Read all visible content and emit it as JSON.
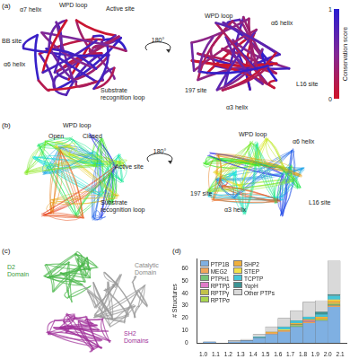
{
  "panels": {
    "a": {
      "label": "(a)",
      "left_labels": [
        "α7 helix",
        "WPD loop",
        "Active site",
        "BB site",
        "α6 helix",
        "Substrate\nrecognition loop"
      ],
      "right_labels": [
        "WPD loop",
        "α6 helix",
        "L16 site",
        "197 site",
        "α3 helix"
      ],
      "rotation": "180°",
      "colorbar": {
        "title": "Conservation score",
        "range": [
          0,
          1
        ],
        "ticks": [
          0,
          1
        ]
      }
    },
    "b": {
      "label": "(b)",
      "left_labels": [
        "WPD loop",
        "Open",
        "Closed",
        "Active site",
        "Substrate\nrecognition loop"
      ],
      "right_labels": [
        "WPD loop",
        "α6 helix",
        "L16 site",
        "197 site",
        "α3 helix"
      ],
      "rotation": "180°"
    },
    "c": {
      "label": "(c)",
      "labels": [
        "D2\nDomain",
        "Catalytic\nDomain",
        "SH2\nDomains"
      ]
    }
  },
  "chart_data": {
    "type": "bar",
    "panel_label": "(d)",
    "y_label": "# Structures",
    "bins": [
      1.0,
      1.1,
      1.2,
      1.3,
      1.4,
      1.5,
      1.6,
      1.7,
      1.8,
      1.9,
      2.0,
      2.1
    ],
    "stacked": true,
    "grid": false,
    "legend": "upper left",
    "xlim": [
      1.0,
      2.1
    ],
    "xticks": [
      {
        "value": 1.0,
        "label": "1.0"
      },
      1.1,
      1.2,
      1.3,
      1.4,
      1.5,
      1.6,
      1.7,
      1.8,
      1.9,
      {
        "value": 2.0,
        "label": "2.0"
      },
      2.1
    ],
    "ylim": [
      0,
      68
    ],
    "yticks": [
      0,
      10,
      20,
      30,
      40,
      50,
      60
    ],
    "series": [
      {
        "name": "PTP1B",
        "color": "#7fb0e2",
        "values": [
          1,
          0,
          1,
          2,
          4,
          7,
          9,
          13,
          16,
          18,
          29
        ]
      },
      {
        "name": "MEG2",
        "color": "#f2a65a",
        "values": [
          0,
          0,
          0,
          0,
          0,
          1,
          1,
          0,
          1,
          0,
          1
        ]
      },
      {
        "name": "PTPH1",
        "color": "#77c477",
        "values": [
          0,
          0,
          0,
          0,
          0,
          0,
          0,
          1,
          0,
          0,
          1
        ]
      },
      {
        "name": "RPTPβ",
        "color": "#e07cc8",
        "values": [
          0,
          0,
          0,
          0,
          0,
          0,
          0,
          0,
          1,
          0,
          0
        ]
      },
      {
        "name": "RPTPγ",
        "color": "#c2c24a",
        "values": [
          0,
          0,
          0,
          0,
          0,
          0,
          0,
          1,
          0,
          0,
          1
        ]
      },
      {
        "name": "RPTPσ",
        "color": "#a9d650",
        "values": [
          0,
          0,
          0,
          0,
          0,
          0,
          0,
          0,
          0,
          1,
          0
        ]
      },
      {
        "name": "SHP2",
        "color": "#f0b03c",
        "values": [
          0,
          0,
          0,
          0,
          0,
          1,
          0,
          1,
          1,
          2,
          2
        ]
      },
      {
        "name": "STEP",
        "color": "#f2e24a",
        "values": [
          0,
          0,
          0,
          0,
          0,
          0,
          1,
          0,
          0,
          0,
          1
        ]
      },
      {
        "name": "TCPTP",
        "color": "#45c6d8",
        "values": [
          0,
          0,
          0,
          0,
          1,
          0,
          2,
          2,
          2,
          2,
          3
        ]
      },
      {
        "name": "YopH",
        "color": "#3d9494",
        "values": [
          0,
          0,
          0,
          0,
          0,
          0,
          0,
          0,
          0,
          2,
          1
        ]
      },
      {
        "name": "Other PTPs",
        "color": "#d9d9d9",
        "values": [
          0,
          0,
          1,
          1,
          2,
          4,
          7,
          8,
          12,
          9,
          27
        ]
      }
    ]
  }
}
